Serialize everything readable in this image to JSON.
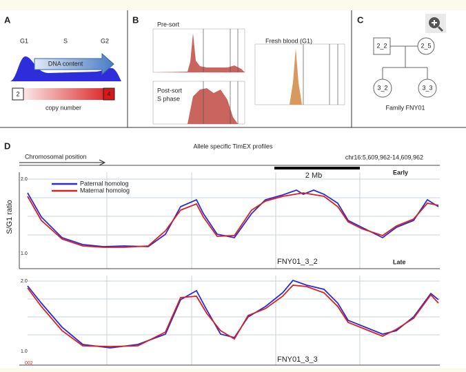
{
  "panel_a": {
    "letter": "A",
    "phases": [
      "G1",
      "S",
      "G2"
    ],
    "arrow": "DNA content",
    "scale_low": "2",
    "scale_high": "4",
    "scale_caption": "copy number"
  },
  "panel_b": {
    "letter": "B",
    "top_label": "Pre-sort",
    "bottom_label": [
      "Post-sort",
      "S phase"
    ],
    "right_label": "Fresh blood (G1)"
  },
  "panel_c": {
    "letter": "C",
    "parents": [
      "2_2",
      "2_5"
    ],
    "children": [
      "3_2",
      "3_3"
    ],
    "caption": "Family FNY01"
  },
  "panel_d": {
    "letter": "D",
    "title": "Allele specific TimEX profiles",
    "x_label": "Chromosomal position",
    "region": "chr16:5,609,962-14,609,962",
    "scale_bar": "2 Mb",
    "y_label": "S/G1 ratio",
    "early": "Early",
    "late": "Late",
    "legend": [
      "Paternal homolog",
      "Maternal homolog"
    ],
    "plots": [
      {
        "name": "FNY01_3_2",
        "y_top": "2.0",
        "y_bottom": "1.0"
      },
      {
        "name": "FNY01_3_3",
        "y_top": "2.0",
        "y_bottom": "1.0"
      }
    ],
    "corner_note": "002"
  }
}
